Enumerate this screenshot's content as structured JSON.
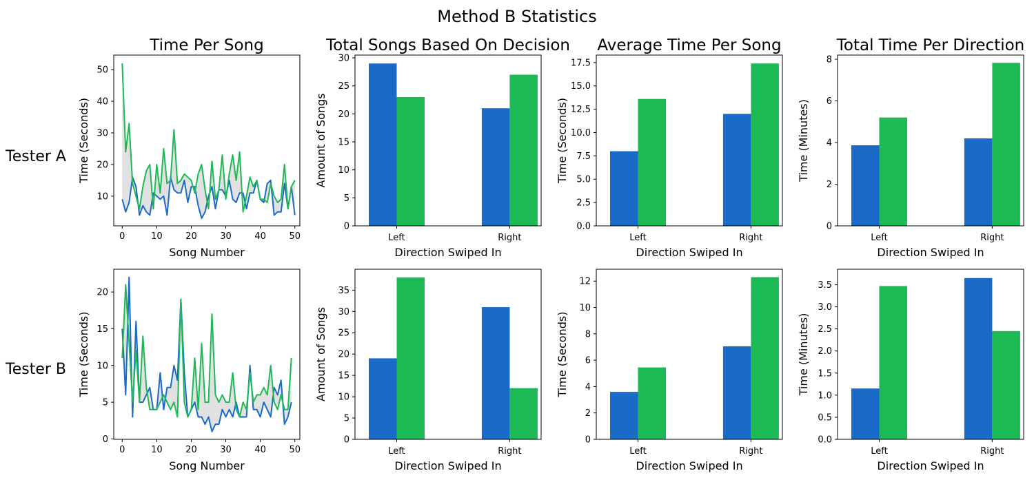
{
  "suptitle": "Method B Statistics",
  "row_labels": [
    "Tester A",
    "Tester B"
  ],
  "colors": {
    "series_1": "#1a6ac7",
    "series_2": "#1db954",
    "fill": "#e1e1e1",
    "axis": "#000000"
  },
  "chart_data": [
    {
      "type": "line",
      "row": 0,
      "title": "Time Per Song",
      "xlabel": "Song Number",
      "ylabel": "Time (Seconds)",
      "xlim": [
        -2.45,
        51.45
      ],
      "ylim": [
        0.6,
        54.6
      ],
      "xticks": [
        0,
        10,
        20,
        30,
        40,
        50
      ],
      "yticks": [
        10,
        20,
        30,
        40,
        50
      ],
      "fill_between": true,
      "series": [
        {
          "values": [
            9,
            5,
            8,
            16,
            13,
            4,
            7,
            5,
            4,
            11,
            10,
            9,
            10,
            4,
            16,
            12,
            11,
            11,
            15,
            8,
            13,
            13,
            7,
            3,
            5,
            10,
            13,
            6,
            12,
            12,
            10,
            15,
            9,
            8,
            11,
            11,
            6,
            11,
            11,
            15,
            9,
            8,
            14,
            15,
            4,
            5,
            5,
            14,
            6,
            13,
            4
          ]
        },
        {
          "values": [
            52,
            24,
            33,
            14,
            10,
            6,
            13,
            18,
            20,
            6,
            20,
            11,
            25,
            14,
            15,
            31,
            14,
            15,
            17,
            16,
            15,
            11,
            17,
            20,
            12,
            6,
            21,
            9,
            12,
            23,
            9,
            17,
            23,
            15,
            24,
            5,
            10,
            16,
            13,
            15,
            9,
            9,
            8,
            14,
            10,
            8,
            9,
            20,
            6,
            13,
            15
          ]
        }
      ]
    },
    {
      "type": "bar",
      "row": 0,
      "title": "Total Songs Based On Decision",
      "xlabel": "Direction Swiped In",
      "ylabel": "Amount of Songs",
      "categories": [
        "Left",
        "Right"
      ],
      "ylim": [
        0,
        30.5
      ],
      "yticks": [
        "0",
        "5",
        "10",
        "15",
        "20",
        "25",
        "30"
      ],
      "series": [
        {
          "values": [
            29,
            21
          ]
        },
        {
          "values": [
            23,
            27
          ]
        }
      ]
    },
    {
      "type": "bar",
      "row": 0,
      "title": "Average Time Per Song",
      "xlabel": "Direction Swiped In",
      "ylabel": "Time (Seconds)",
      "categories": [
        "Left",
        "Right"
      ],
      "ylim": [
        0,
        18.3
      ],
      "yticks": [
        "0.0",
        "2.5",
        "5.0",
        "7.5",
        "10.0",
        "12.5",
        "15.0",
        "17.5"
      ],
      "series": [
        {
          "values": [
            8.0,
            12.0
          ]
        },
        {
          "values": [
            13.6,
            17.4
          ]
        }
      ]
    },
    {
      "type": "bar",
      "row": 0,
      "title": "Total Time Per Direction",
      "xlabel": "Direction Swiped In",
      "ylabel": "Time (Minutes)",
      "categories": [
        "Left",
        "Right"
      ],
      "ylim": [
        0,
        8.2
      ],
      "yticks": [
        "0",
        "2",
        "4",
        "6",
        "8"
      ],
      "series": [
        {
          "values": [
            3.87,
            4.2
          ]
        },
        {
          "values": [
            5.2,
            7.83
          ]
        }
      ]
    },
    {
      "type": "line",
      "row": 1,
      "title": "",
      "xlabel": "Song Number",
      "ylabel": "Time (Seconds)",
      "xlim": [
        -2.45,
        51.45
      ],
      "ylim": [
        -0.05,
        23.1
      ],
      "xticks": [
        0,
        10,
        20,
        30,
        40,
        50
      ],
      "yticks": [
        0,
        5,
        10,
        15,
        20
      ],
      "fill_between": true,
      "series": [
        {
          "values": [
            15,
            6,
            22,
            3,
            16,
            5,
            5,
            6,
            7,
            4,
            4,
            9,
            4,
            7,
            7,
            10,
            8,
            19,
            9,
            3,
            4,
            5,
            3,
            3,
            2,
            3,
            1,
            2,
            2,
            4,
            3,
            4,
            3,
            5,
            3,
            3,
            3,
            10,
            4,
            4,
            3,
            5,
            4,
            3,
            7,
            6,
            8,
            2,
            3,
            5
          ]
        },
        {
          "values": [
            11,
            21,
            13,
            5,
            12,
            5,
            14,
            7,
            4,
            4,
            4,
            5,
            6,
            5,
            4,
            5,
            3,
            19,
            5,
            3,
            4,
            11,
            4,
            13,
            5,
            5,
            17,
            6,
            5,
            6,
            5,
            5,
            9,
            4,
            3,
            5,
            4,
            9,
            5,
            6,
            6,
            7,
            6,
            10,
            5,
            4,
            6,
            4,
            4,
            11
          ]
        }
      ]
    },
    {
      "type": "bar",
      "row": 1,
      "title": "",
      "xlabel": "Direction Swiped In",
      "ylabel": "Amount of Songs",
      "categories": [
        "Left",
        "Right"
      ],
      "ylim": [
        0,
        39.9
      ],
      "yticks": [
        "0",
        "5",
        "10",
        "15",
        "20",
        "25",
        "30",
        "35"
      ],
      "series": [
        {
          "values": [
            19,
            31
          ]
        },
        {
          "values": [
            38,
            12
          ]
        }
      ]
    },
    {
      "type": "bar",
      "row": 1,
      "title": "",
      "xlabel": "Direction Swiped In",
      "ylabel": "Time (Seconds)",
      "categories": [
        "Left",
        "Right"
      ],
      "ylim": [
        0,
        12.9
      ],
      "yticks": [
        "0",
        "2",
        "4",
        "6",
        "8",
        "10",
        "12"
      ],
      "series": [
        {
          "values": [
            3.6,
            7.05
          ]
        },
        {
          "values": [
            5.45,
            12.3
          ]
        }
      ]
    },
    {
      "type": "bar",
      "row": 1,
      "title": "",
      "xlabel": "Direction Swiped In",
      "ylabel": "Time (Minutes)",
      "categories": [
        "Left",
        "Right"
      ],
      "ylim": [
        0,
        3.85
      ],
      "yticks": [
        "0.0",
        "0.5",
        "1.0",
        "1.5",
        "2.0",
        "2.5",
        "3.0",
        "3.5"
      ],
      "series": [
        {
          "values": [
            1.15,
            3.65
          ]
        },
        {
          "values": [
            3.47,
            2.45
          ]
        }
      ]
    }
  ]
}
